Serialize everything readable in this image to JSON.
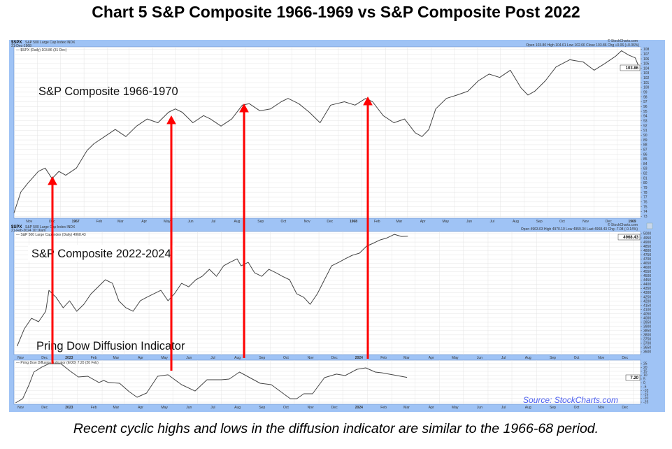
{
  "title": "Chart 5 S&P Composite 1966-1969 vs S&P Composite Post 2022",
  "caption": "Recent cyclic highs and lows in the diffusion indicator are similar to the 1966-68 period.",
  "colors": {
    "frame": "#9fc3f5",
    "line": "#444444",
    "arrow": "#ff0000",
    "grid": "#e4e4e4",
    "source": "#4a5ef0"
  },
  "annotations": {
    "top": "S&P Composite 1966-1970",
    "middle": "S&P Composite 2022-2024",
    "bottom": "Pring Dow Diffusion Indicator",
    "source": "Source: StockCharts.com"
  },
  "panels": {
    "top": {
      "symbol": "$SPX",
      "name": "S&P 500 Large Cap Index INDX",
      "date": "31-Dec-1968",
      "legend": "— $SPX (Daily) 103.86 (31 Dec)",
      "quote": "Open 103.80  High 104.61  Low 102.66  Close 103.86  Chg +0.06 (+0.06%)",
      "watermark": "© StockCharts.com",
      "last_label": "103.86"
    },
    "middle": {
      "symbol": "$SPX",
      "name": "S&P 500 Large Cap Index INDX",
      "date": "21-Feb-2024 10:16am",
      "legend": "— S&P 500 Large Cap Index (Daily) 4968.43",
      "quote": "Open 4963.03  High 4970.10  Low 4959.34  Last 4968.43  Chg -7.08 (-0.14%)",
      "watermark": "© StockCharts.com",
      "last_label": "4968.43"
    },
    "bottom": {
      "legend": "— Pring Dow Diffusion Indicator (EOD) 7.20 (20 Feb)",
      "last_label": "7.20"
    }
  },
  "chart_data": [
    {
      "type": "line",
      "title": "$SPX S&P 500 Large Cap Index INDX",
      "xlim": [
        "1966-10-01",
        "1969-01-01"
      ],
      "ylim": [
        72.6,
        108.5
      ],
      "yticks": [
        73,
        74,
        75,
        76,
        77,
        78,
        79,
        80,
        81,
        82,
        83,
        84,
        85,
        86,
        87,
        88,
        89,
        90,
        91,
        92,
        93,
        94,
        95,
        96,
        97,
        98,
        99,
        100,
        101,
        102,
        103,
        104,
        105,
        106,
        107,
        108
      ],
      "xticks": [
        [
          "1966-11-01",
          "Nov"
        ],
        [
          "1966-12-01",
          "Dec"
        ],
        [
          "1967-01-01",
          "1967"
        ],
        [
          "1967-02-01",
          "Feb"
        ],
        [
          "1967-03-01",
          "Mar"
        ],
        [
          "1967-04-01",
          "Apr"
        ],
        [
          "1967-05-01",
          "May"
        ],
        [
          "1967-06-01",
          "Jun"
        ],
        [
          "1967-07-01",
          "Jul"
        ],
        [
          "1967-08-01",
          "Aug"
        ],
        [
          "1967-09-01",
          "Sep"
        ],
        [
          "1967-10-01",
          "Oct"
        ],
        [
          "1967-11-01",
          "Nov"
        ],
        [
          "1967-12-01",
          "Dec"
        ],
        [
          "1968-01-01",
          "1968"
        ],
        [
          "1968-02-01",
          "Feb"
        ],
        [
          "1968-03-01",
          "Mar"
        ],
        [
          "1968-04-01",
          "Apr"
        ],
        [
          "1968-05-01",
          "May"
        ],
        [
          "1968-06-01",
          "Jun"
        ],
        [
          "1968-07-01",
          "Jul"
        ],
        [
          "1968-08-01",
          "Aug"
        ],
        [
          "1968-09-01",
          "Sep"
        ],
        [
          "1968-10-01",
          "Oct"
        ],
        [
          "1968-11-01",
          "Nov"
        ],
        [
          "1968-12-01",
          "Dec"
        ],
        [
          "1969-01-01",
          "1969"
        ]
      ],
      "grid": true,
      "series": [
        {
          "x": [
            "1966-10-01",
            "1966-10-10",
            "1966-10-19",
            "1966-11-02",
            "1966-11-11",
            "1966-11-20",
            "1966-11-29",
            "1966-12-08",
            "1966-12-22",
            "1967-01-05",
            "1967-01-14",
            "1967-01-28",
            "1967-02-11",
            "1967-02-25",
            "1967-03-11",
            "1967-03-25",
            "1967-04-08",
            "1967-04-22",
            "1967-05-01",
            "1967-05-10",
            "1967-05-24",
            "1967-06-07",
            "1967-06-16",
            "1967-06-30",
            "1967-07-14",
            "1967-07-28",
            "1967-08-06",
            "1967-08-20",
            "1967-09-03",
            "1967-09-17",
            "1967-09-26",
            "1967-10-10",
            "1967-10-24",
            "1967-11-07",
            "1967-11-21",
            "1967-12-09",
            "1967-12-23",
            "1968-01-06",
            "1968-01-15",
            "1968-01-29",
            "1968-02-12",
            "1968-02-26",
            "1968-03-11",
            "1968-03-20",
            "1968-03-29",
            "1968-04-07",
            "1968-04-21",
            "1968-05-05",
            "1968-05-19",
            "1968-06-02",
            "1968-06-16",
            "1968-06-30",
            "1968-07-14",
            "1968-07-28",
            "1968-08-06",
            "1968-08-15",
            "1968-08-29",
            "1968-09-12",
            "1968-09-30",
            "1968-10-18",
            "1968-11-01",
            "1968-11-15",
            "1968-11-29",
            "1968-12-07",
            "1968-12-16",
            "1968-12-25",
            "1968-12-31"
          ],
          "y": [
            73.7,
            78.1,
            79.9,
            82.4,
            83.1,
            80.9,
            82.4,
            81.6,
            83.1,
            86.8,
            88.2,
            89.7,
            91.2,
            89.7,
            91.9,
            93.4,
            92.6,
            94.8,
            95.5,
            94.8,
            92.6,
            94.1,
            93.4,
            91.9,
            93.4,
            96.3,
            96.6,
            95.1,
            95.5,
            97.0,
            97.7,
            96.6,
            94.8,
            92.6,
            96.3,
            97.0,
            96.3,
            97.7,
            97.0,
            94.1,
            92.6,
            93.4,
            90.5,
            89.7,
            91.2,
            95.5,
            97.7,
            98.4,
            99.2,
            101.4,
            102.8,
            102.1,
            103.6,
            99.9,
            98.4,
            99.2,
            101.4,
            104.3,
            105.8,
            105.3,
            103.6,
            105.0,
            106.5,
            107.7,
            106.8,
            106.2,
            103.86
          ]
        }
      ]
    },
    {
      "type": "line",
      "title": "$SPX S&P 500 Large Cap Index INDX",
      "xlim": [
        "2022-10-13",
        "2024-12-10"
      ],
      "ylim": [
        3567,
        5025
      ],
      "yticks": [
        3600,
        3650,
        3700,
        3750,
        3800,
        3850,
        3900,
        3950,
        4000,
        4050,
        4100,
        4150,
        4200,
        4250,
        4300,
        4350,
        4400,
        4450,
        4500,
        4550,
        4600,
        4650,
        4700,
        4750,
        4800,
        4850,
        4900,
        4950,
        5000
      ],
      "xticks": [
        [
          "2022-11-01",
          "Nov"
        ],
        [
          "2022-12-01",
          "Dec"
        ],
        [
          "2023-01-01",
          "2023"
        ],
        [
          "2023-02-01",
          "Feb"
        ],
        [
          "2023-03-01",
          "Mar"
        ],
        [
          "2023-04-01",
          "Apr"
        ],
        [
          "2023-05-01",
          "May"
        ],
        [
          "2023-06-01",
          "Jun"
        ],
        [
          "2023-07-01",
          "Jul"
        ],
        [
          "2023-08-01",
          "Aug"
        ],
        [
          "2023-09-01",
          "Sep"
        ],
        [
          "2023-10-01",
          "Oct"
        ],
        [
          "2023-11-01",
          "Nov"
        ],
        [
          "2023-12-01",
          "Dec"
        ],
        [
          "2024-01-01",
          "2024"
        ],
        [
          "2024-02-01",
          "Feb"
        ],
        [
          "2024-03-01",
          "Mar"
        ],
        [
          "2024-04-01",
          "Apr"
        ],
        [
          "2024-05-01",
          "May"
        ],
        [
          "2024-06-01",
          "Jun"
        ],
        [
          "2024-07-01",
          "Jul"
        ],
        [
          "2024-08-01",
          "Aug"
        ],
        [
          "2024-09-01",
          "Sep"
        ],
        [
          "2024-10-01",
          "Oct"
        ],
        [
          "2024-11-01",
          "Nov"
        ],
        [
          "2024-12-01",
          "Dec"
        ]
      ],
      "grid": true,
      "series": [
        {
          "x": [
            "2022-10-17",
            "2022-10-26",
            "2022-11-04",
            "2022-11-13",
            "2022-11-22",
            "2022-11-26",
            "2022-12-05",
            "2022-12-14",
            "2022-12-22",
            "2022-12-31",
            "2023-01-09",
            "2023-01-18",
            "2023-01-27",
            "2023-02-05",
            "2023-02-14",
            "2023-02-22",
            "2023-03-03",
            "2023-03-12",
            "2023-03-21",
            "2023-03-29",
            "2023-04-07",
            "2023-04-16",
            "2023-04-25",
            "2023-05-03",
            "2023-05-12",
            "2023-05-21",
            "2023-05-30",
            "2023-06-07",
            "2023-06-16",
            "2023-06-25",
            "2023-07-04",
            "2023-07-12",
            "2023-07-21",
            "2023-07-26",
            "2023-08-04",
            "2023-08-12",
            "2023-08-21",
            "2023-08-30",
            "2023-09-08",
            "2023-09-16",
            "2023-09-25",
            "2023-10-04",
            "2023-10-13",
            "2023-10-21",
            "2023-10-30",
            "2023-11-08",
            "2023-11-17",
            "2023-11-26",
            "2023-12-04",
            "2023-12-13",
            "2023-12-22",
            "2023-12-31",
            "2024-01-08",
            "2024-01-17",
            "2024-01-26",
            "2024-02-04",
            "2024-02-13",
            "2024-02-21"
          ],
          "y": [
            3666,
            3873,
            3997,
            3956,
            4080,
            4328,
            4245,
            4121,
            4204,
            4080,
            4163,
            4287,
            4370,
            4453,
            4411,
            4204,
            4121,
            4080,
            4204,
            4245,
            4287,
            4328,
            4204,
            4287,
            4411,
            4370,
            4453,
            4494,
            4577,
            4494,
            4618,
            4660,
            4701,
            4618,
            4660,
            4535,
            4494,
            4577,
            4535,
            4494,
            4453,
            4287,
            4245,
            4163,
            4287,
            4453,
            4618,
            4660,
            4701,
            4743,
            4768,
            4851,
            4884,
            4925,
            4950,
            4991,
            4966,
            4968.43
          ]
        }
      ]
    },
    {
      "type": "line",
      "title": "Pring Dow Diffusion Indicator (EOD)",
      "xlim": [
        "2022-10-13",
        "2024-12-10"
      ],
      "ylim": [
        -27.7,
        29.5
      ],
      "yticks": [
        -25,
        -20,
        -15,
        -10,
        -5,
        0,
        5,
        10,
        15,
        20,
        25
      ],
      "xticks": [
        [
          "2022-11-01",
          "Nov"
        ],
        [
          "2022-12-01",
          "Dec"
        ],
        [
          "2023-01-01",
          "2023"
        ],
        [
          "2023-02-01",
          "Feb"
        ],
        [
          "2023-03-01",
          "Mar"
        ],
        [
          "2023-04-01",
          "Apr"
        ],
        [
          "2023-05-01",
          "May"
        ],
        [
          "2023-06-01",
          "Jun"
        ],
        [
          "2023-07-01",
          "Jul"
        ],
        [
          "2023-08-01",
          "Aug"
        ],
        [
          "2023-09-01",
          "Sep"
        ],
        [
          "2023-10-01",
          "Oct"
        ],
        [
          "2023-11-01",
          "Nov"
        ],
        [
          "2023-12-01",
          "Dec"
        ],
        [
          "2024-01-01",
          "2024"
        ],
        [
          "2024-02-01",
          "Feb"
        ],
        [
          "2024-03-01",
          "Mar"
        ],
        [
          "2024-04-01",
          "Apr"
        ],
        [
          "2024-05-01",
          "May"
        ],
        [
          "2024-06-01",
          "Jun"
        ],
        [
          "2024-07-01",
          "Jul"
        ],
        [
          "2024-08-01",
          "Aug"
        ],
        [
          "2024-09-01",
          "Sep"
        ],
        [
          "2024-10-01",
          "Oct"
        ],
        [
          "2024-11-01",
          "Nov"
        ],
        [
          "2024-12-01",
          "Dec"
        ]
      ],
      "grid": true,
      "series": [
        {
          "x": [
            "2022-10-15",
            "2022-10-24",
            "2022-11-01",
            "2022-11-07",
            "2022-11-17",
            "2022-11-26",
            "2022-12-11",
            "2022-12-22",
            "2023-01-02",
            "2023-01-14",
            "2023-01-28",
            "2023-02-03",
            "2023-02-09",
            "2023-02-23",
            "2023-03-07",
            "2023-03-17",
            "2023-03-29",
            "2023-04-12",
            "2023-04-25",
            "2023-05-12",
            "2023-05-29",
            "2023-06-13",
            "2023-07-01",
            "2023-07-11",
            "2023-07-24",
            "2023-08-19",
            "2023-09-02",
            "2023-09-26",
            "2023-10-04",
            "2023-10-13",
            "2023-10-24",
            "2023-11-08",
            "2023-11-23",
            "2023-12-04",
            "2023-12-19",
            "2023-12-30",
            "2024-01-11",
            "2024-01-19",
            "2024-02-20"
          ],
          "y": [
            -25.9,
            -20.5,
            -2.3,
            14.1,
            20.5,
            25,
            25,
            15.9,
            7.7,
            8.6,
            0.5,
            3.2,
            0.5,
            -0.5,
            -11.4,
            -18.6,
            -13.2,
            8.6,
            10.5,
            -2.3,
            -10.5,
            4.1,
            4.1,
            5,
            14.1,
            -0.5,
            -2.3,
            -20.5,
            -20.5,
            -14.1,
            -14.1,
            6.8,
            11.4,
            9.5,
            17.7,
            19.5,
            14.1,
            13.2,
            7.2
          ]
        }
      ]
    }
  ]
}
